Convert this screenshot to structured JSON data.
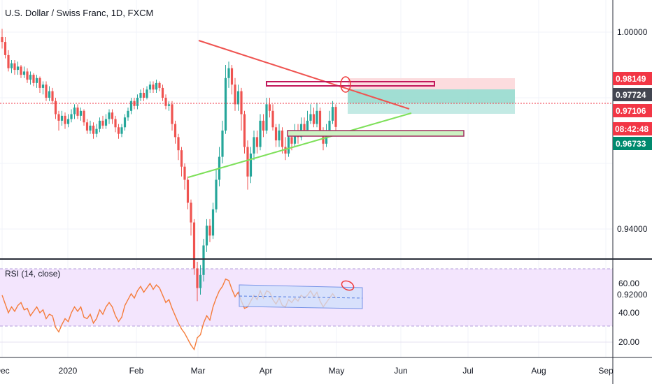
{
  "header": {
    "symbol_title": "U.S. Dollar / Swiss Franc, 1D, FXCM"
  },
  "rsi_panel": {
    "title": "RSI (14, close)"
  },
  "price_tags": {
    "upper": {
      "label": "0.98149",
      "color": "#f23645"
    },
    "mid": {
      "label": "0.97724",
      "color": "#434651"
    },
    "last": {
      "label": "0.97106",
      "color": "#f23645"
    },
    "countdown": {
      "label": "08:42:48",
      "color": "#f23645"
    },
    "lower": {
      "label": "0.96733",
      "color": "#008a6e"
    }
  },
  "chart_data": [
    {
      "type": "candlestick",
      "title": "U.S. Dollar / Swiss Franc, 1D, FXCM",
      "x_ticks": [
        "Dec",
        "2020",
        "Feb",
        "Mar",
        "Apr",
        "May",
        "Jun",
        "Jul",
        "Aug",
        "Sep"
      ],
      "y_ticks": [
        "1.00000",
        "0.94000",
        "0.92000"
      ],
      "ylim": [
        0.915,
        1.01
      ],
      "grid": true,
      "candles": [
        [
          0.9985,
          0.997,
          1.001,
          0.995
        ],
        [
          0.997,
          0.993,
          0.9985,
          0.992
        ],
        [
          0.993,
          0.989,
          0.9945,
          0.988
        ],
        [
          0.989,
          0.9905,
          0.9915,
          0.9875
        ],
        [
          0.9905,
          0.9885,
          0.9915,
          0.987
        ],
        [
          0.9885,
          0.9895,
          0.991,
          0.987
        ],
        [
          0.9895,
          0.987,
          0.99,
          0.986
        ],
        [
          0.987,
          0.988,
          0.9895,
          0.986
        ],
        [
          0.988,
          0.9855,
          0.989,
          0.9845
        ],
        [
          0.9855,
          0.987,
          0.988,
          0.984
        ],
        [
          0.987,
          0.9845,
          0.9875,
          0.9835
        ],
        [
          0.9845,
          0.986,
          0.987,
          0.983
        ],
        [
          0.986,
          0.983,
          0.9865,
          0.9815
        ],
        [
          0.983,
          0.984,
          0.985,
          0.981
        ],
        [
          0.984,
          0.98,
          0.985,
          0.979
        ],
        [
          0.98,
          0.982,
          0.9835,
          0.979
        ],
        [
          0.982,
          0.979,
          0.983,
          0.978
        ],
        [
          0.979,
          0.975,
          0.98,
          0.9735
        ],
        [
          0.975,
          0.973,
          0.976,
          0.97
        ],
        [
          0.973,
          0.9745,
          0.976,
          0.9715
        ],
        [
          0.9745,
          0.972,
          0.9755,
          0.9705
        ],
        [
          0.972,
          0.9735,
          0.975,
          0.971
        ],
        [
          0.9735,
          0.975,
          0.9765,
          0.9725
        ],
        [
          0.975,
          0.977,
          0.978,
          0.9735
        ],
        [
          0.977,
          0.9745,
          0.978,
          0.9735
        ],
        [
          0.9745,
          0.976,
          0.977,
          0.973
        ],
        [
          0.976,
          0.9725,
          0.9765,
          0.9715
        ],
        [
          0.9725,
          0.97,
          0.9735,
          0.969
        ],
        [
          0.97,
          0.9715,
          0.973,
          0.969
        ],
        [
          0.9715,
          0.969,
          0.9725,
          0.9675
        ],
        [
          0.969,
          0.9705,
          0.972,
          0.968
        ],
        [
          0.9705,
          0.973,
          0.974,
          0.9695
        ],
        [
          0.973,
          0.9715,
          0.9745,
          0.9705
        ],
        [
          0.9715,
          0.9735,
          0.975,
          0.9705
        ],
        [
          0.9735,
          0.9755,
          0.9765,
          0.972
        ],
        [
          0.9755,
          0.9735,
          0.9765,
          0.972
        ],
        [
          0.9735,
          0.971,
          0.9745,
          0.9695
        ],
        [
          0.971,
          0.969,
          0.972,
          0.9675
        ],
        [
          0.969,
          0.971,
          0.972,
          0.968
        ],
        [
          0.971,
          0.974,
          0.975,
          0.97
        ],
        [
          0.974,
          0.976,
          0.977,
          0.973
        ],
        [
          0.976,
          0.979,
          0.98,
          0.975
        ],
        [
          0.979,
          0.9775,
          0.98,
          0.9765
        ],
        [
          0.9775,
          0.98,
          0.981,
          0.9765
        ],
        [
          0.98,
          0.9815,
          0.9825,
          0.979
        ],
        [
          0.9815,
          0.98,
          0.983,
          0.979
        ],
        [
          0.98,
          0.9825,
          0.9835,
          0.9795
        ],
        [
          0.9825,
          0.984,
          0.985,
          0.9815
        ],
        [
          0.984,
          0.9825,
          0.985,
          0.9815
        ],
        [
          0.9825,
          0.9845,
          0.9855,
          0.9815
        ],
        [
          0.9845,
          0.983,
          0.985,
          0.982
        ],
        [
          0.983,
          0.98,
          0.984,
          0.979
        ],
        [
          0.98,
          0.9775,
          0.981,
          0.9765
        ],
        [
          0.9775,
          0.978,
          0.979,
          0.976
        ],
        [
          0.978,
          0.972,
          0.979,
          0.97
        ],
        [
          0.972,
          0.968,
          0.973,
          0.966
        ],
        [
          0.968,
          0.964,
          0.969,
          0.961
        ],
        [
          0.964,
          0.959,
          0.965,
          0.956
        ],
        [
          0.959,
          0.955,
          0.96,
          0.952
        ],
        [
          0.955,
          0.948,
          0.956,
          0.946
        ],
        [
          0.948,
          0.942,
          0.949,
          0.938
        ],
        [
          0.942,
          0.928,
          0.943,
          0.926
        ],
        [
          0.928,
          0.922,
          0.93,
          0.918
        ],
        [
          0.922,
          0.926,
          0.929,
          0.92
        ],
        [
          0.926,
          0.935,
          0.937,
          0.924
        ],
        [
          0.935,
          0.941,
          0.943,
          0.933
        ],
        [
          0.941,
          0.938,
          0.943,
          0.936
        ],
        [
          0.938,
          0.946,
          0.948,
          0.937
        ],
        [
          0.946,
          0.955,
          0.958,
          0.945
        ],
        [
          0.955,
          0.962,
          0.965,
          0.953
        ],
        [
          0.962,
          0.97,
          0.973,
          0.96
        ],
        [
          0.97,
          0.986,
          0.99,
          0.969
        ],
        [
          0.986,
          0.989,
          0.991,
          0.983
        ],
        [
          0.989,
          0.984,
          0.99,
          0.981
        ],
        [
          0.984,
          0.978,
          0.986,
          0.976
        ],
        [
          0.978,
          0.982,
          0.984,
          0.976
        ],
        [
          0.982,
          0.975,
          0.983,
          0.97
        ],
        [
          0.975,
          0.965,
          0.976,
          0.963
        ],
        [
          0.965,
          0.956,
          0.967,
          0.952
        ],
        [
          0.956,
          0.963,
          0.965,
          0.954
        ],
        [
          0.963,
          0.968,
          0.97,
          0.961
        ],
        [
          0.968,
          0.965,
          0.97,
          0.963
        ],
        [
          0.965,
          0.973,
          0.975,
          0.964
        ],
        [
          0.973,
          0.97,
          0.975,
          0.968
        ],
        [
          0.97,
          0.978,
          0.98,
          0.969
        ],
        [
          0.978,
          0.976,
          0.98,
          0.974
        ],
        [
          0.976,
          0.971,
          0.978,
          0.97
        ],
        [
          0.971,
          0.967,
          0.972,
          0.965
        ],
        [
          0.967,
          0.97,
          0.972,
          0.965
        ],
        [
          0.97,
          0.965,
          0.971,
          0.963
        ],
        [
          0.965,
          0.963,
          0.968,
          0.961
        ],
        [
          0.963,
          0.968,
          0.97,
          0.962
        ],
        [
          0.968,
          0.966,
          0.97,
          0.964
        ],
        [
          0.966,
          0.97,
          0.972,
          0.965
        ],
        [
          0.97,
          0.968,
          0.972,
          0.966
        ],
        [
          0.968,
          0.972,
          0.974,
          0.967
        ],
        [
          0.972,
          0.97,
          0.974,
          0.969
        ],
        [
          0.97,
          0.973,
          0.976,
          0.969
        ],
        [
          0.973,
          0.975,
          0.978,
          0.972
        ],
        [
          0.975,
          0.972,
          0.977,
          0.971
        ],
        [
          0.972,
          0.976,
          0.9785,
          0.971
        ],
        [
          0.976,
          0.97,
          0.977,
          0.969
        ],
        [
          0.97,
          0.966,
          0.971,
          0.964
        ],
        [
          0.966,
          0.97,
          0.972,
          0.965
        ],
        [
          0.97,
          0.973,
          0.976,
          0.969
        ],
        [
          0.973,
          0.9772,
          0.979,
          0.972
        ],
        [
          0.9772,
          0.9711,
          0.978,
          0.97
        ]
      ]
    },
    {
      "type": "line",
      "title": "RSI (14, close)",
      "y_ticks": [
        "60.00",
        "40.00",
        "20.00"
      ],
      "ylim": [
        12,
        74
      ],
      "bands": [
        70,
        30
      ],
      "values": [
        52,
        46,
        40,
        44,
        41,
        45,
        47,
        42,
        43,
        38,
        41,
        44,
        40,
        42,
        36,
        39,
        38,
        30,
        27,
        32,
        36,
        34,
        40,
        44,
        41,
        44,
        37,
        36,
        39,
        33,
        36,
        42,
        39,
        44,
        47,
        44,
        38,
        34,
        37,
        45,
        49,
        53,
        50,
        55,
        58,
        54,
        57,
        60,
        56,
        59,
        57,
        52,
        47,
        49,
        43,
        38,
        33,
        29,
        26,
        22,
        18,
        15,
        23,
        25,
        33,
        38,
        35,
        44,
        50,
        55,
        58,
        63,
        62,
        56,
        51,
        54,
        48,
        43,
        44,
        48,
        52,
        49,
        55,
        50,
        55,
        54,
        49,
        46,
        50,
        45,
        44,
        49,
        47,
        50,
        48,
        52,
        50,
        52,
        55,
        51,
        54,
        48,
        44,
        47,
        50,
        53,
        50
      ]
    }
  ]
}
